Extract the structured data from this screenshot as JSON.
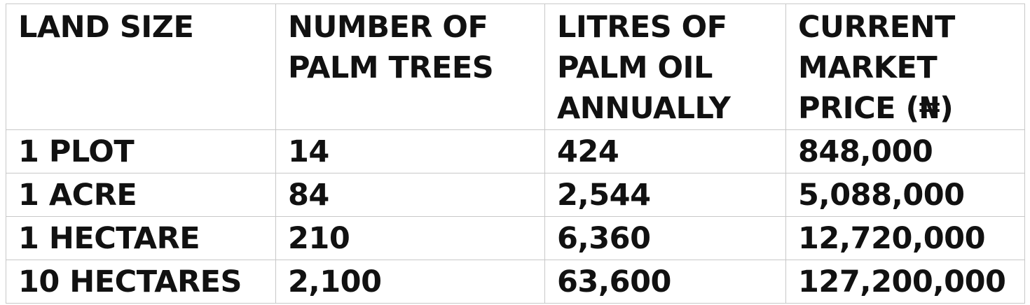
{
  "table": {
    "header": [
      "LAND SIZE",
      "NUMBER OF PALM TREES",
      "LITRES OF PALM OIL ANNUALLY",
      "CURRENT MARKET PRICE (₦)"
    ],
    "rows": [
      [
        "1 PLOT",
        "14",
        "424",
        "848,000"
      ],
      [
        "1 ACRE",
        "84",
        "2,544",
        "5,088,000"
      ],
      [
        "1 HECTARE",
        "210",
        "6,360",
        "12,720,000"
      ],
      [
        "10 HECTARES",
        "2,100",
        "63,600",
        "127,200,000"
      ]
    ]
  }
}
